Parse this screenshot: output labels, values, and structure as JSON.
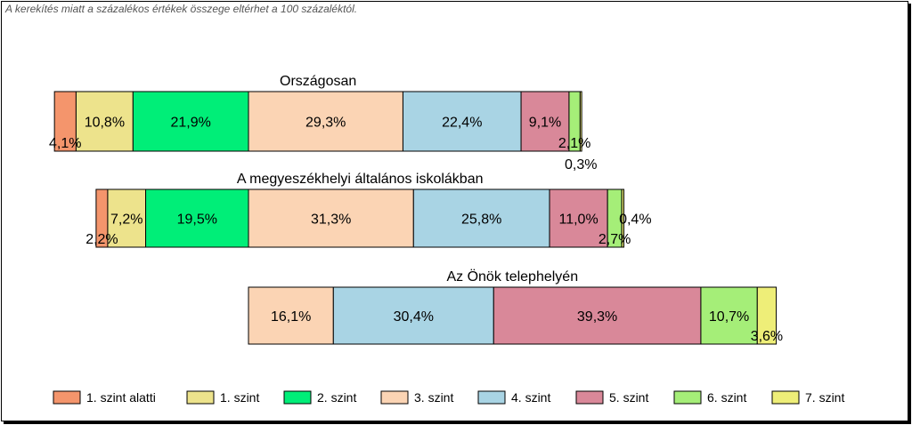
{
  "note": "A kerekítés miatt a  százalékos értékek összege eltérhet a 100 százaléktól.",
  "chart_data": {
    "type": "bar",
    "orientation": "horizontal",
    "stacked": true,
    "groups": [
      {
        "title": "Országosan",
        "values": [
          4.1,
          10.8,
          21.9,
          29.3,
          22.4,
          9.1,
          2.1,
          0.3
        ],
        "labels": [
          "4,1%",
          "10,8%",
          "21,9%",
          "29,3%",
          "22,4%",
          "9,1%",
          "2,1%",
          "0,3%"
        ]
      },
      {
        "title": "A megyeszékhelyi általános iskolákban",
        "values": [
          2.2,
          7.2,
          19.5,
          31.3,
          25.8,
          11.0,
          2.7,
          0.4
        ],
        "labels": [
          "2,2%",
          "7,2%",
          "19,5%",
          "31,3%",
          "25,8%",
          "11,0%",
          "2,7%",
          "0,4%"
        ]
      },
      {
        "title": "Az Önök telephelyén",
        "values": [
          0,
          0,
          0,
          16.1,
          30.4,
          39.3,
          10.7,
          3.6
        ],
        "labels": [
          "",
          "",
          "",
          "16,1%",
          "30,4%",
          "39,3%",
          "10,7%",
          "3,6%"
        ]
      }
    ],
    "legend": {
      "placement": "bottom",
      "items": [
        {
          "name": "1. szint alatti",
          "color": "#f4956c"
        },
        {
          "name": "1. szint",
          "color": "#ede38c"
        },
        {
          "name": "2. szint",
          "color": "#00ee78"
        },
        {
          "name": "3. szint",
          "color": "#fbd4b4"
        },
        {
          "name": "4. szint",
          "color": "#a9d4e4"
        },
        {
          "name": "5. szint",
          "color": "#d98899"
        },
        {
          "name": "6. szint",
          "color": "#a5ee78"
        },
        {
          "name": "7. szint",
          "color": "#eeee78"
        }
      ]
    }
  }
}
